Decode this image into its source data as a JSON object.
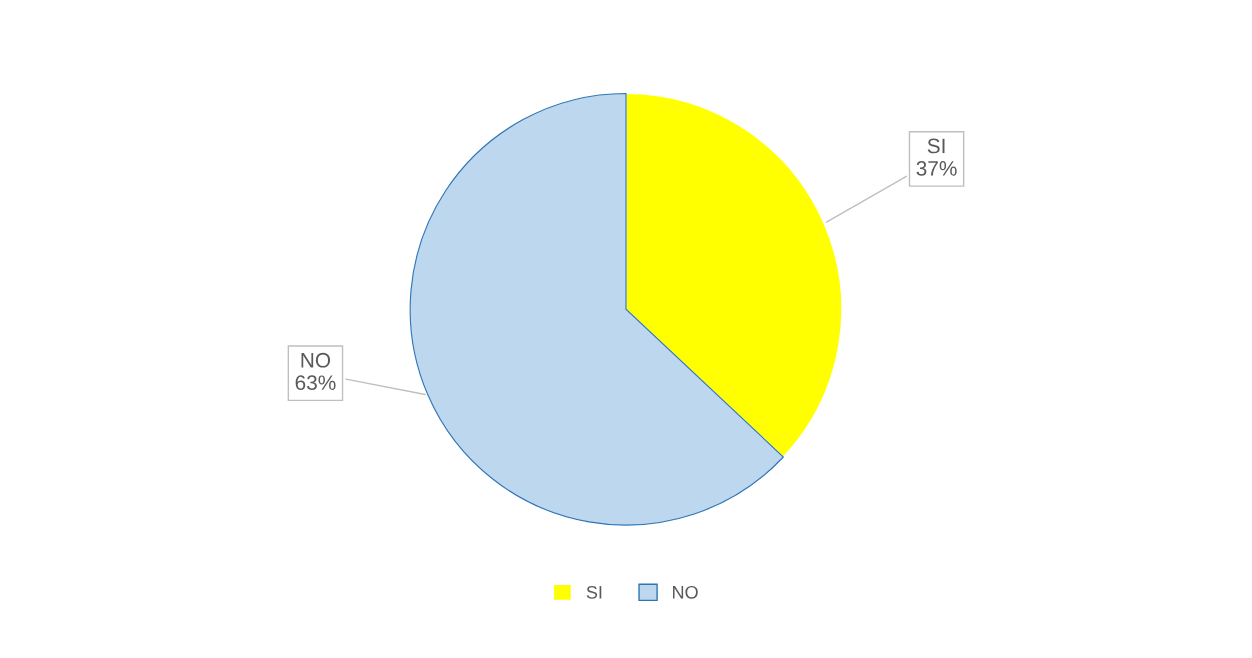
{
  "chart_data": {
    "type": "pie",
    "categories": [
      "SI",
      "NO"
    ],
    "values": [
      37,
      63
    ],
    "value_labels": [
      "37%",
      "63%"
    ],
    "colors": [
      "#ffff00",
      "#bdd7ee"
    ],
    "legend": "bottom"
  }
}
